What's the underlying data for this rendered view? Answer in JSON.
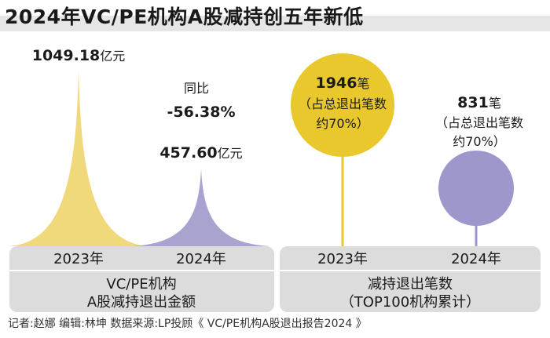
{
  "title": "2024年VC/PE机构A股减持创五年新低",
  "footer": "记者:赵娜   编辑:林坤   数据来源:LP投顾《 VC/PE机构A股退出报告2024 》",
  "colors": {
    "year2023": "#f0d97a",
    "year2024": "#a9a3cf",
    "panel": "#dcdcdc",
    "circle2023": "#e9c82e",
    "circle2024": "#9e97cc"
  },
  "chart_data": [
    {
      "type": "area",
      "title": "VC/PE机构 A股减持退出金额",
      "categories": [
        "2023年",
        "2024年"
      ],
      "values": [
        1049.18,
        457.6
      ],
      "unit": "亿元",
      "value_labels": [
        "1049.18",
        "457.60"
      ],
      "annotation": {
        "line1": "同比",
        "line2": "-56.38%"
      },
      "caption": [
        "VC/PE机构",
        "A股减持退出金额"
      ]
    },
    {
      "type": "scatter",
      "title": "减持退出笔数 （TOP100机构累计）",
      "categories": [
        "2023年",
        "2024年"
      ],
      "values": [
        1946,
        831
      ],
      "unit": "笔",
      "value_labels": [
        "1946",
        "831"
      ],
      "notes": [
        [
          "（占总退出笔数",
          "约70%）"
        ],
        [
          "（占总退出笔数",
          "约70%）"
        ]
      ],
      "caption": [
        "减持退出笔数",
        "（TOP100机构累计）"
      ]
    }
  ]
}
